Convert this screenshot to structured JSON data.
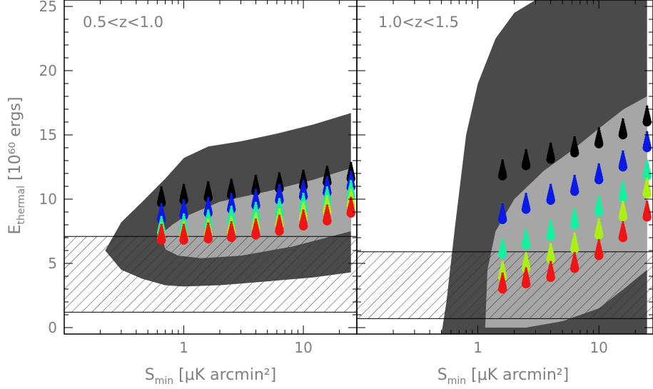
{
  "colors": {
    "dark_region": "#4a4a4a",
    "light_region": "#a6a6a6",
    "hatch": "#333333",
    "axis_text": "#7f7f7f",
    "sequence": [
      "#000000",
      "#0a1ae6",
      "#14f0a0",
      "#aaf014",
      "#f01414"
    ]
  },
  "chart_data": [
    {
      "type": "scatter",
      "panel_label": "0.5<z<1.0",
      "xlabel_main": "S",
      "xlabel_sub": "min",
      "xlabel_rest": " [μK arcmin²]",
      "ylabel_main": "E",
      "ylabel_sub": "thermal",
      "ylabel_rest": " [10⁶⁰ ergs]",
      "x_scale": "log",
      "xlim": [
        0.1,
        28
      ],
      "ylim": [
        -0.5,
        25.5
      ],
      "x_ticks": [
        1,
        10
      ],
      "x_tick_labels": [
        "1",
        "10"
      ],
      "y_ticks": [
        0,
        5,
        10,
        15,
        20,
        25
      ],
      "y_tick_labels": [
        "0",
        "5",
        "10",
        "15",
        "20",
        "25"
      ],
      "hatched_band": [
        1.2,
        7.1
      ],
      "dark_region": {
        "upper": [
          [
            0.22,
            6.0
          ],
          [
            0.3,
            8.2
          ],
          [
            0.45,
            9.8
          ],
          [
            0.7,
            11.6
          ],
          [
            1.0,
            13.2
          ],
          [
            1.6,
            14.1
          ],
          [
            3.0,
            14.5
          ],
          [
            6.0,
            15.1
          ],
          [
            12.0,
            15.8
          ],
          [
            25.0,
            16.7
          ]
        ],
        "lower": [
          [
            0.22,
            6.0
          ],
          [
            0.3,
            4.5
          ],
          [
            0.45,
            3.8
          ],
          [
            0.7,
            3.3
          ],
          [
            1.0,
            3.2
          ],
          [
            2.0,
            3.3
          ],
          [
            5.0,
            3.6
          ],
          [
            12.0,
            3.9
          ],
          [
            25.0,
            4.3
          ]
        ]
      },
      "light_region": {
        "upper": [
          [
            0.65,
            7.3
          ],
          [
            0.8,
            8.0
          ],
          [
            1.0,
            8.6
          ],
          [
            2.0,
            9.8
          ],
          [
            5.0,
            10.6
          ],
          [
            12.0,
            11.5
          ],
          [
            25.0,
            12.4
          ]
        ],
        "lower": [
          [
            0.65,
            7.3
          ],
          [
            0.7,
            6.1
          ],
          [
            0.9,
            5.6
          ],
          [
            1.4,
            5.4
          ],
          [
            3.0,
            5.6
          ],
          [
            8.0,
            6.3
          ],
          [
            25.0,
            7.5
          ]
        ]
      },
      "x_values": [
        0.65,
        1.0,
        1.6,
        2.5,
        4.0,
        6.3,
        10.0,
        15.8,
        25.0
      ],
      "series": [
        {
          "color": "black",
          "values": [
            9.7,
            9.9,
            10.1,
            10.3,
            10.6,
            10.8,
            11.0,
            11.3,
            11.6
          ]
        },
        {
          "color": "blue",
          "values": [
            8.4,
            8.7,
            8.9,
            9.2,
            9.5,
            9.9,
            10.2,
            10.5,
            10.9
          ]
        },
        {
          "color": "cyan",
          "values": [
            7.4,
            7.6,
            7.9,
            8.2,
            8.5,
            8.8,
            9.2,
            9.7,
            10.2
          ]
        },
        {
          "color": "yellowgreen",
          "values": [
            6.9,
            7.0,
            7.2,
            7.4,
            7.7,
            8.0,
            8.5,
            9.0,
            9.5
          ]
        },
        {
          "color": "red",
          "values": [
            6.8,
            6.8,
            6.9,
            7.0,
            7.2,
            7.5,
            7.9,
            8.3,
            8.9
          ]
        }
      ]
    },
    {
      "type": "scatter",
      "panel_label": "1.0<z<1.5",
      "xlabel_main": "S",
      "xlabel_sub": "min",
      "xlabel_rest": " [μK arcmin²]",
      "x_scale": "log",
      "xlim": [
        0.1,
        28
      ],
      "ylim": [
        -0.5,
        25.5
      ],
      "x_ticks": [
        1,
        10
      ],
      "x_tick_labels": [
        "1",
        "10"
      ],
      "y_ticks": [
        0,
        5,
        10,
        15,
        20,
        25
      ],
      "hatched_band": [
        0.7,
        5.9
      ],
      "dark_region": {
        "upper": [
          [
            0.5,
            -0.5
          ],
          [
            0.55,
            2.0
          ],
          [
            0.65,
            8.0
          ],
          [
            0.8,
            15.0
          ],
          [
            1.0,
            19.0
          ],
          [
            1.4,
            22.5
          ],
          [
            2.0,
            24.5
          ],
          [
            3.0,
            25.5
          ],
          [
            25.0,
            25.5
          ]
        ],
        "lower": [
          [
            0.5,
            -0.5
          ],
          [
            25.0,
            -0.5
          ]
        ]
      },
      "light_region": {
        "upper": [
          [
            1.15,
            0.0
          ],
          [
            1.2,
            4.5
          ],
          [
            1.4,
            7.5
          ],
          [
            2.0,
            10.0
          ],
          [
            3.5,
            12.2
          ],
          [
            6.0,
            13.8
          ],
          [
            10.0,
            15.5
          ],
          [
            16.0,
            17.0
          ],
          [
            25.0,
            18.0
          ]
        ],
        "lower": [
          [
            1.15,
            0.0
          ],
          [
            2.5,
            0.0
          ],
          [
            5.0,
            0.5
          ],
          [
            10.0,
            1.5
          ],
          [
            16.0,
            3.0
          ],
          [
            25.0,
            4.5
          ]
        ]
      },
      "x_values": [
        1.6,
        2.5,
        4.0,
        6.3,
        10.0,
        15.8,
        25.0
      ],
      "series": [
        {
          "color": "black",
          "values": [
            11.8,
            12.6,
            13.1,
            13.6,
            14.3,
            15.0,
            16.0
          ]
        },
        {
          "color": "blue",
          "values": [
            8.4,
            9.2,
            9.9,
            10.6,
            11.5,
            12.5,
            14.0
          ]
        },
        {
          "color": "cyan",
          "values": [
            5.7,
            6.4,
            7.1,
            8.0,
            9.0,
            10.1,
            11.8
          ]
        },
        {
          "color": "yellowgreen",
          "values": [
            3.9,
            4.6,
            5.3,
            6.1,
            7.2,
            8.6,
            10.4
          ]
        },
        {
          "color": "red",
          "values": [
            3.0,
            3.4,
            3.9,
            4.6,
            5.6,
            7.0,
            8.6
          ]
        }
      ]
    }
  ]
}
